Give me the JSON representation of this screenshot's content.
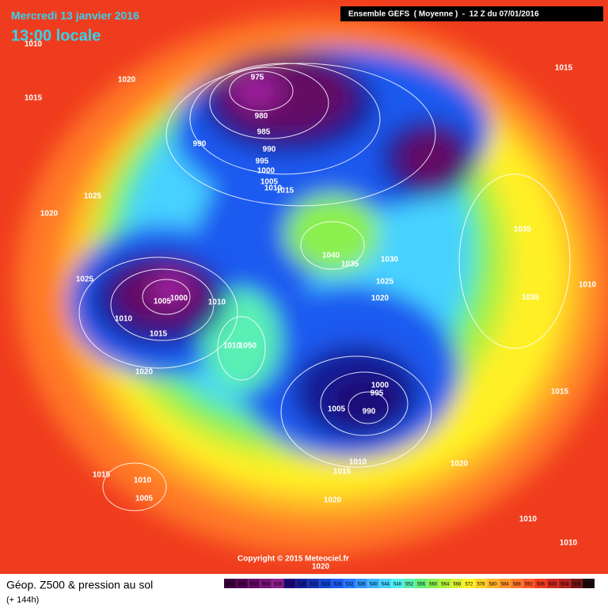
{
  "header": {
    "date": "Mercredi 13 janvier 2016",
    "time": "13:00 locale",
    "model": "Ensemble GEFS  ( Moyenne )  -  12 Z du 07/01/2016",
    "copyright": "Copyright © 2015 Meteociel.fr"
  },
  "footer": {
    "caption": "Géop. Z500 & pression au sol",
    "lead": "(+ 144h)"
  },
  "legend": {
    "values": [
      492,
      496,
      500,
      504,
      508,
      512,
      516,
      520,
      524,
      528,
      532,
      536,
      540,
      544,
      548,
      552,
      556,
      560,
      564,
      568,
      572,
      576,
      580,
      584,
      588,
      592,
      596,
      600,
      604,
      608,
      612
    ],
    "colors": [
      "#3c003c",
      "#500050",
      "#640a64",
      "#781478",
      "#8c1e8c",
      "#1e0a78",
      "#141e96",
      "#1432b4",
      "#1446d2",
      "#1e5af0",
      "#2878ff",
      "#3296ff",
      "#3cb4ff",
      "#46d2ff",
      "#50f0f0",
      "#5af0b4",
      "#64f078",
      "#8cf050",
      "#b4f03c",
      "#dcf032",
      "#fff028",
      "#ffd228",
      "#ffb428",
      "#ff9628",
      "#ff7828",
      "#ff5a28",
      "#f03c1e",
      "#d2281e",
      "#b41e1e",
      "#781414",
      "#1e0a0a"
    ]
  },
  "isobar_labels": [
    "975",
    "980",
    "985",
    "990",
    "990",
    "995",
    "1000",
    "1005",
    "1010",
    "1015",
    "1020",
    "1015",
    "1010",
    "1015",
    "1025",
    "1020",
    "1025",
    "1005",
    "1000",
    "1010",
    "1010",
    "1015",
    "1020",
    "1010",
    "1050",
    "1040",
    "1035",
    "1030",
    "1025",
    "1020",
    "1035",
    "1035",
    "1010",
    "1015",
    "1000",
    "995",
    "1005",
    "990",
    "1010",
    "1015",
    "1020",
    "1020",
    "1015",
    "1010",
    "1005",
    "1010",
    "1010",
    "1020"
  ]
}
